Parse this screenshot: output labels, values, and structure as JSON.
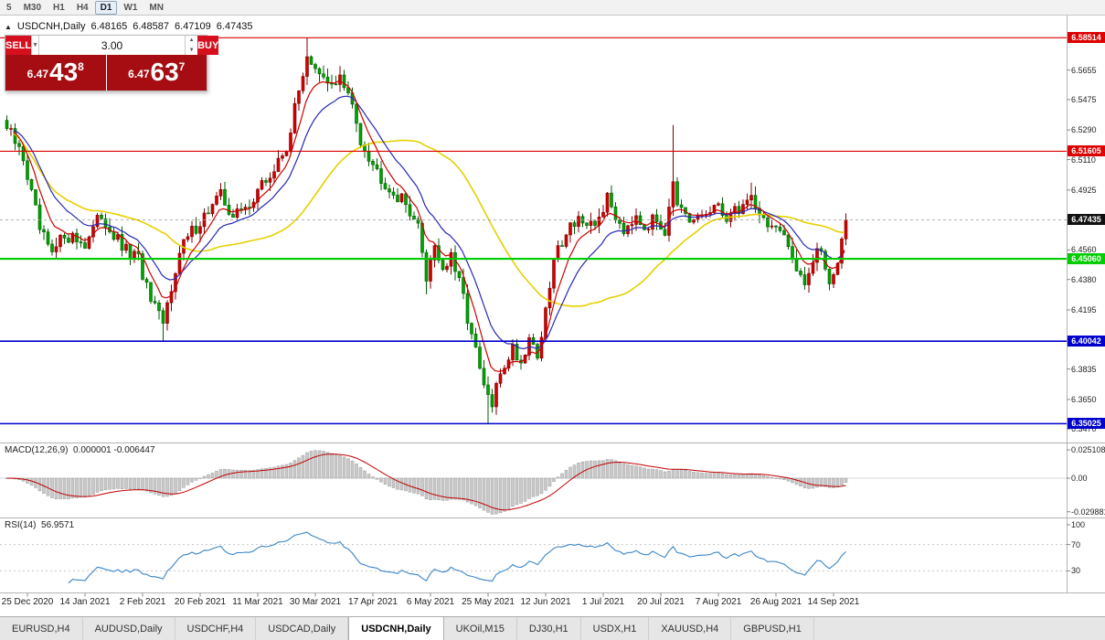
{
  "toolbar": {
    "periods": [
      "5",
      "M30",
      "H1",
      "H4",
      "D1",
      "W1",
      "MN"
    ],
    "active_period": "D1"
  },
  "header": {
    "direction_icon": "▲",
    "symbol": "USDCNH,Daily",
    "open": "6.48165",
    "high": "6.48587",
    "low": "6.47109",
    "close": "6.47435"
  },
  "trade_widget": {
    "sell_label": "SELL",
    "buy_label": "BUY",
    "lot_size": "3.00",
    "dropdown_icon": "▼",
    "spin_up_icon": "▲",
    "spin_down_icon": "▼",
    "sell_price": {
      "prefix": "6.47",
      "big": "43",
      "sup": "8"
    },
    "buy_price": {
      "prefix": "6.47",
      "big": "63",
      "sup": "7"
    }
  },
  "chart_data": {
    "type": "candlestick",
    "symbol": "USDCNH",
    "timeframe": "Daily",
    "ohlc": {
      "open": 6.48165,
      "high": 6.48587,
      "low": 6.47109,
      "close": 6.47435
    },
    "price_range": {
      "min": 6.341,
      "max": 6.597
    },
    "num_candles": 205,
    "y_ticks": [
      6.5655,
      6.5475,
      6.529,
      6.511,
      6.4925,
      6.456,
      6.438,
      6.4195,
      6.4015,
      6.3835,
      6.365,
      6.347
    ],
    "levels": [
      {
        "value": 6.58514,
        "label": "6.58514",
        "color": "#dd0000",
        "width": 1.2,
        "style": "solid"
      },
      {
        "value": 6.51605,
        "label": "6.51605",
        "color": "#dd0000",
        "width": 1.2,
        "style": "solid"
      },
      {
        "value": 6.47435,
        "label": "6.47435",
        "color": "#111111",
        "width": 0.8,
        "style": "dashed",
        "type": "current"
      },
      {
        "value": 6.4506,
        "label": "6.45060",
        "color": "#00cc00",
        "width": 2.2,
        "style": "solid"
      },
      {
        "value": 6.40042,
        "label": "6.40042",
        "color": "#0000cc",
        "width": 1.6,
        "style": "solid"
      },
      {
        "value": 6.35025,
        "label": "6.35025",
        "color": "#0000cc",
        "width": 1.6,
        "style": "solid"
      }
    ],
    "x_labels": [
      "25 Dec 2020",
      "14 Jan 2021",
      "2 Feb 2021",
      "20 Feb 2021",
      "11 Mar 2021",
      "30 Mar 2021",
      "17 Apr 2021",
      "6 May 2021",
      "25 May 2021",
      "12 Jun 2021",
      "1 Jul 2021",
      "20 Jul 2021",
      "7 Aug 2021",
      "26 Aug 2021",
      "14 Sep 2021"
    ],
    "trend_anchors": [
      [
        0,
        6.53
      ],
      [
        4,
        6.512
      ],
      [
        8,
        6.468
      ],
      [
        11,
        6.452
      ],
      [
        14,
        6.466
      ],
      [
        19,
        6.46
      ],
      [
        23,
        6.477
      ],
      [
        28,
        6.457
      ],
      [
        32,
        6.45
      ],
      [
        35,
        6.424
      ],
      [
        38,
        6.41
      ],
      [
        41,
        6.446
      ],
      [
        43,
        6.46
      ],
      [
        48,
        6.477
      ],
      [
        52,
        6.489
      ],
      [
        55,
        6.477
      ],
      [
        58,
        6.481
      ],
      [
        61,
        6.492
      ],
      [
        65,
        6.504
      ],
      [
        68,
        6.519
      ],
      [
        71,
        6.552
      ],
      [
        73,
        6.576
      ],
      [
        75,
        6.564
      ],
      [
        78,
        6.556
      ],
      [
        81,
        6.561
      ],
      [
        84,
        6.543
      ],
      [
        86,
        6.524
      ],
      [
        90,
        6.504
      ],
      [
        94,
        6.491
      ],
      [
        98,
        6.481
      ],
      [
        100,
        6.469
      ],
      [
        102,
        6.44
      ],
      [
        104,
        6.46
      ],
      [
        106,
        6.444
      ],
      [
        108,
        6.451
      ],
      [
        111,
        6.427
      ],
      [
        113,
        6.404
      ],
      [
        116,
        6.372
      ],
      [
        118,
        6.361
      ],
      [
        120,
        6.381
      ],
      [
        123,
        6.397
      ],
      [
        125,
        6.387
      ],
      [
        127,
        6.404
      ],
      [
        129,
        6.392
      ],
      [
        131,
        6.417
      ],
      [
        133,
        6.45
      ],
      [
        136,
        6.468
      ],
      [
        139,
        6.477
      ],
      [
        141,
        6.467
      ],
      [
        143,
        6.471
      ],
      [
        146,
        6.487
      ],
      [
        148,
        6.477
      ],
      [
        150,
        6.469
      ],
      [
        153,
        6.479
      ],
      [
        155,
        6.471
      ],
      [
        158,
        6.474
      ],
      [
        160,
        6.469
      ],
      [
        162,
        6.5
      ],
      [
        163,
        6.481
      ],
      [
        166,
        6.471
      ],
      [
        169,
        6.477
      ],
      [
        172,
        6.481
      ],
      [
        175,
        6.477
      ],
      [
        178,
        6.481
      ],
      [
        181,
        6.489
      ],
      [
        184,
        6.474
      ],
      [
        187,
        6.469
      ],
      [
        190,
        6.457
      ],
      [
        192,
        6.447
      ],
      [
        194,
        6.437
      ],
      [
        197,
        6.456
      ],
      [
        199,
        6.446
      ],
      [
        200,
        6.436
      ],
      [
        202,
        6.451
      ],
      [
        204,
        6.4744
      ]
    ],
    "spikes": [
      {
        "i": 38,
        "l": 6.4004
      },
      {
        "i": 73,
        "h": 6.5851
      },
      {
        "i": 102,
        "l": 6.429
      },
      {
        "i": 117,
        "l": 6.3503
      },
      {
        "i": 118,
        "l": 6.357
      },
      {
        "i": 162,
        "h": 6.532
      },
      {
        "i": 181,
        "h": 6.497
      }
    ],
    "colors": {
      "bull": "#d40000",
      "bull_border": "#7d0000",
      "bear": "#00a400",
      "bear_border": "#005c00",
      "ma_fast": "#cc0000",
      "ma_mid": "#2727b5",
      "ma_slow": "#e6d000",
      "macd_hist": "#c9c9c9",
      "macd_hist_border": "#9c9c9c",
      "macd_signal": "#c00000",
      "rsi_line": "#3a86c8",
      "separator": "#b4b4b4"
    },
    "indicators": {
      "macd": {
        "label": "MACD(12,26,9)",
        "values": "0.000001 -0.006447",
        "scale": [
          {
            "label": "0.025108",
            "value": 0.025108
          },
          {
            "label": "0.00",
            "value": 0
          },
          {
            "label": "-0.029881",
            "value": -0.029881
          }
        ]
      },
      "rsi": {
        "label": "RSI(14)",
        "value": "56.9571",
        "scale": [
          {
            "label": "100",
            "value": 100
          },
          {
            "label": "70",
            "value": 70
          },
          {
            "label": "30",
            "value": 30
          }
        ]
      }
    }
  },
  "tabbar": {
    "active_index": 4,
    "tabs": [
      {
        "label": "EURUSD,H4"
      },
      {
        "label": "AUDUSD,Daily"
      },
      {
        "label": "USDCHF,H4"
      },
      {
        "label": "USDCAD,Daily"
      },
      {
        "label": "USDCNH,Daily"
      },
      {
        "label": "UKOil,M15"
      },
      {
        "label": "DJ30,H1"
      },
      {
        "label": "USDX,H1"
      },
      {
        "label": "XAUUSD,H4"
      },
      {
        "label": "GBPUSD,H1"
      }
    ]
  }
}
